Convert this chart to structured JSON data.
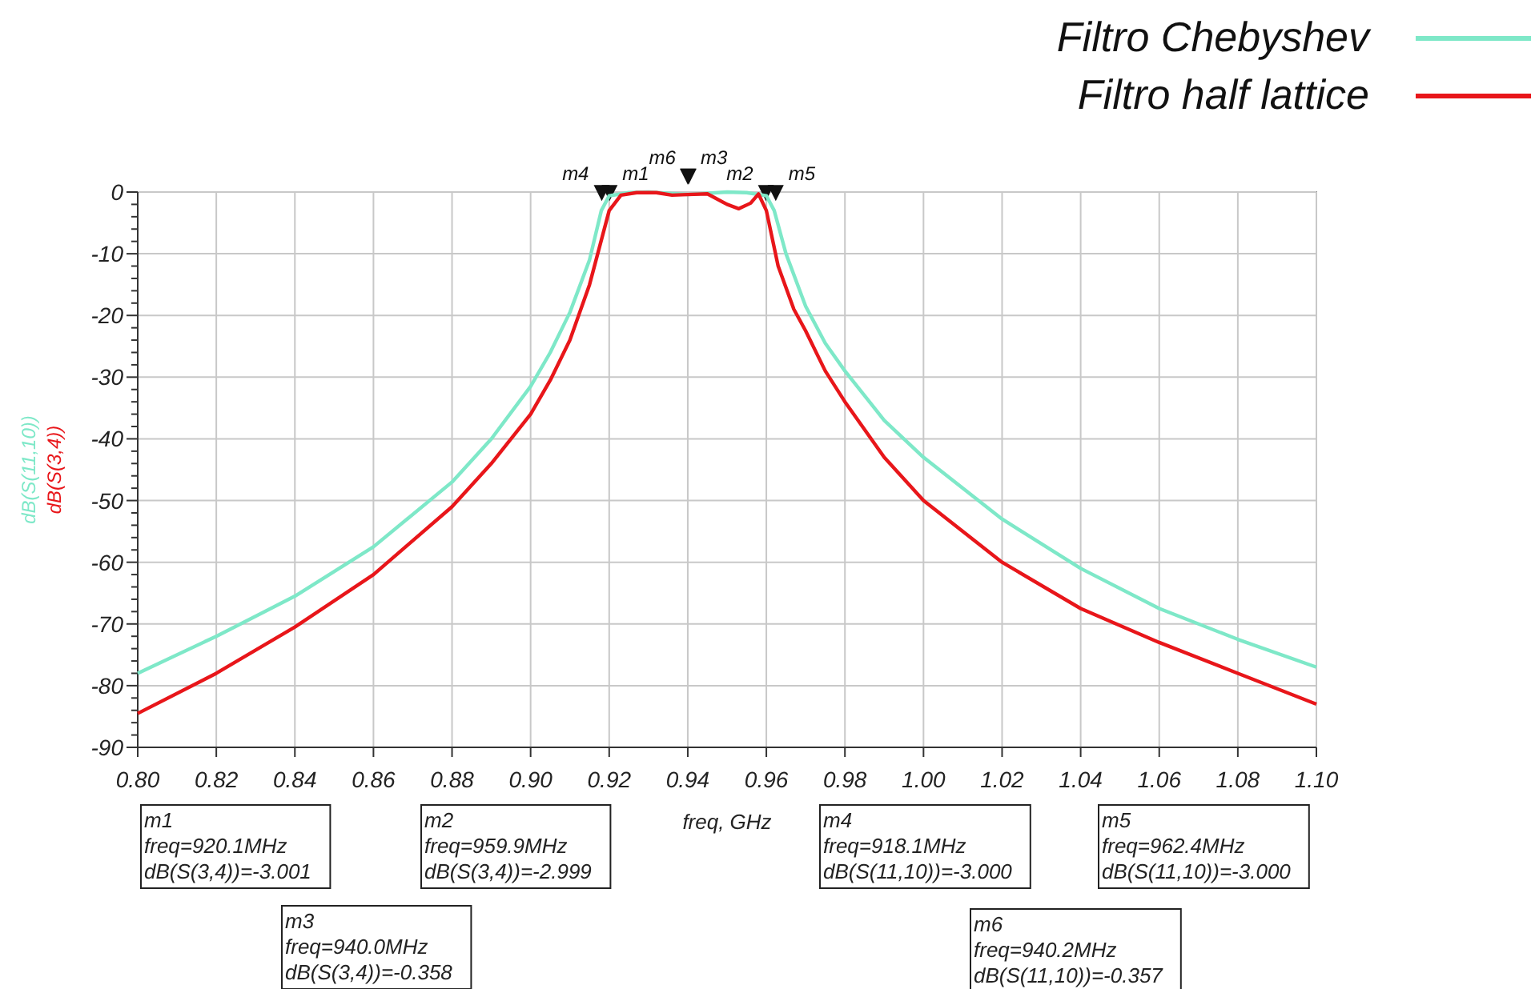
{
  "chart_data": {
    "type": "line",
    "ylabel": [
      "dB(S(11,10))",
      "dB(S(3,4))"
    ],
    "xlabel": "freq, GHz",
    "xlim": [
      0.8,
      1.1
    ],
    "xticks": [
      {
        "value": 0.8,
        "label": "0.80"
      },
      {
        "value": 0.82,
        "label": "0.82"
      },
      {
        "value": 0.84,
        "label": "0.84"
      },
      {
        "value": 0.86,
        "label": "0.86"
      },
      {
        "value": 0.88,
        "label": "0.88"
      },
      {
        "value": 0.9,
        "label": "0.90"
      },
      {
        "value": 0.92,
        "label": "0.92"
      },
      {
        "value": 0.94,
        "label": "0.94"
      },
      {
        "value": 0.96,
        "label": "0.96"
      },
      {
        "value": 0.98,
        "label": "0.98"
      },
      {
        "value": 1.0,
        "label": "1.00"
      },
      {
        "value": 1.02,
        "label": "1.02"
      },
      {
        "value": 1.04,
        "label": "1.04"
      },
      {
        "value": 1.06,
        "label": "1.06"
      },
      {
        "value": 1.08,
        "label": "1.08"
      },
      {
        "value": 1.1,
        "label": "1.10"
      }
    ],
    "ylim": [
      -90,
      0
    ],
    "yticks": [
      0,
      {
        "value": -2,
        "label": null
      },
      {
        "value": -4,
        "label": null
      },
      {
        "value": -6,
        "label": null
      },
      {
        "value": -8,
        "label": null
      },
      -10,
      {
        "value": -12,
        "label": null
      },
      {
        "value": -14,
        "label": null
      },
      {
        "value": -16,
        "label": null
      },
      {
        "value": -18,
        "label": null
      },
      -20,
      {
        "value": -22,
        "label": null
      },
      {
        "value": -24,
        "label": null
      },
      {
        "value": -26,
        "label": null
      },
      {
        "value": -28,
        "label": null
      },
      -30,
      {
        "value": -32,
        "label": null
      },
      {
        "value": -34,
        "label": null
      },
      {
        "value": -36,
        "label": null
      },
      {
        "value": -38,
        "label": null
      },
      -40,
      {
        "value": -42,
        "label": null
      },
      {
        "value": -44,
        "label": null
      },
      {
        "value": -46,
        "label": null
      },
      {
        "value": -48,
        "label": null
      },
      -50,
      {
        "value": -52,
        "label": null
      },
      {
        "value": -54,
        "label": null
      },
      {
        "value": -56,
        "label": null
      },
      {
        "value": -58,
        "label": null
      },
      -60,
      {
        "value": -62,
        "label": null
      },
      {
        "value": -64,
        "label": null
      },
      {
        "value": -66,
        "label": null
      },
      {
        "value": -68,
        "label": null
      },
      -70,
      {
        "value": -72,
        "label": null
      },
      {
        "value": -74,
        "label": null
      },
      {
        "value": -76,
        "label": null
      },
      {
        "value": -78,
        "label": null
      },
      -80,
      {
        "value": -82,
        "label": null
      },
      {
        "value": -84,
        "label": null
      },
      {
        "value": -86,
        "label": null
      },
      {
        "value": -88,
        "label": null
      },
      -90
    ],
    "grid": true,
    "legend": "top right",
    "series": [
      {
        "name": "Filtro Chebyshev",
        "color": "#7ee8c8",
        "x": [
          0.8,
          0.82,
          0.84,
          0.86,
          0.88,
          0.89,
          0.9,
          0.905,
          0.91,
          0.915,
          0.918,
          0.92,
          0.925,
          0.93,
          0.94,
          0.95,
          0.955,
          0.96,
          0.962,
          0.965,
          0.97,
          0.975,
          0.98,
          0.99,
          1.0,
          1.02,
          1.04,
          1.06,
          1.08,
          1.1
        ],
        "values": [
          -78,
          -72,
          -65.5,
          -57.5,
          -47,
          -40,
          -31.5,
          -26,
          -19.5,
          -11,
          -3,
          -0.6,
          -0.1,
          0,
          -0.4,
          0,
          -0.1,
          -0.6,
          -3,
          -10,
          -18.5,
          -24.5,
          -29,
          -37,
          -43,
          -53,
          -61,
          -67.5,
          -72.5,
          -77
        ]
      },
      {
        "name": "Filtro half lattice",
        "color": "#e8161a",
        "x": [
          0.8,
          0.82,
          0.84,
          0.86,
          0.88,
          0.89,
          0.9,
          0.905,
          0.91,
          0.915,
          0.92,
          0.923,
          0.927,
          0.932,
          0.936,
          0.94,
          0.945,
          0.95,
          0.953,
          0.956,
          0.958,
          0.96,
          0.963,
          0.967,
          0.97,
          0.975,
          0.98,
          0.99,
          1.0,
          1.02,
          1.04,
          1.06,
          1.08,
          1.1
        ],
        "values": [
          -84.5,
          -78,
          -70.5,
          -62,
          -51,
          -44,
          -36,
          -30.5,
          -24,
          -15,
          -3,
          -0.5,
          -0.1,
          -0.1,
          -0.5,
          -0.4,
          -0.3,
          -2,
          -2.7,
          -1.8,
          -0.3,
          -3,
          -12,
          -19,
          -22.5,
          -29,
          -34,
          -43,
          -50,
          -60,
          -67.5,
          -73,
          -78,
          -83
        ]
      }
    ],
    "annotations": [
      {
        "text": "m1",
        "x": 0.9201,
        "y": -3.001
      },
      {
        "text": "m2",
        "x": 0.9599,
        "y": -2.999
      },
      {
        "text": "m3",
        "x": 0.94,
        "y": -0.358
      },
      {
        "text": "m4",
        "x": 0.9181,
        "y": -3.0
      },
      {
        "text": "m5",
        "x": 0.9624,
        "y": -3.0
      },
      {
        "text": "m6",
        "x": 0.9402,
        "y": -0.357
      },
      "m1\nfreq=920.1MHz\ndB(S(3,4))=-3.001",
      "m2\nfreq=959.9MHz\ndB(S(3,4))=-2.999",
      "m3\nfreq=940.0MHz\ndB(S(3,4))=-0.358",
      "m4\nfreq=918.1MHz\ndB(S(11,10))=-3.000",
      "m5\nfreq=962.4MHz\ndB(S(11,10))=-3.000",
      "m6\nfreq=940.2MHz\ndB(S(11,10))=-0.357"
    ]
  }
}
